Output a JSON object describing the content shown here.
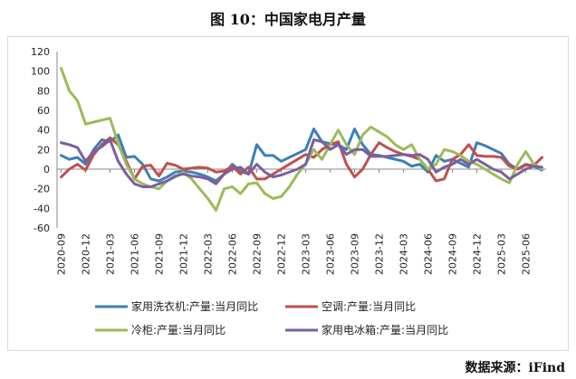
{
  "title": "图 10：中国家电月产量",
  "source": "数据来源：iFind",
  "chart_data": {
    "type": "line",
    "title": "",
    "xlabel": "",
    "ylabel": "",
    "ylim": [
      -60,
      120
    ],
    "yticks": [
      -60,
      -40,
      -20,
      0,
      20,
      40,
      60,
      80,
      100,
      120
    ],
    "grid": false,
    "legend_position": "bottom",
    "x": [
      "2020-09",
      "2020-10",
      "2020-11",
      "2020-12",
      "2021-01",
      "2021-02",
      "2021-03",
      "2021-04",
      "2021-05",
      "2021-06",
      "2021-07",
      "2021-08",
      "2021-09",
      "2021-10",
      "2021-11",
      "2021-12",
      "2022-01",
      "2022-02",
      "2022-03",
      "2022-04",
      "2022-05",
      "2022-06",
      "2022-07",
      "2022-08",
      "2022-09",
      "2022-10",
      "2022-11",
      "2022-12",
      "2023-01",
      "2023-02",
      "2023-03",
      "2023-04",
      "2023-05",
      "2023-06",
      "2023-07",
      "2023-08",
      "2023-09",
      "2023-10",
      "2023-11",
      "2023-12",
      "2024-01",
      "2024-02",
      "2024-03",
      "2024-04",
      "2024-05",
      "2024-06",
      "2024-07",
      "2024-08",
      "2024-09",
      "2024-10",
      "2024-11",
      "2024-12",
      "2025-01",
      "2025-02",
      "2025-03",
      "2025-04",
      "2025-05",
      "2025-06",
      "2025-07",
      "2025-08"
    ],
    "x_tick_labels": [
      "2020-09",
      "2020-12",
      "2021-03",
      "2021-06",
      "2021-09",
      "2021-12",
      "2022-03",
      "2022-06",
      "2022-09",
      "2022-12",
      "2023-03",
      "2023-06",
      "2023-09",
      "2023-12",
      "2024-03",
      "2024-06",
      "2024-09",
      "2024-12",
      "2025-03",
      "2025-06"
    ],
    "series": [
      {
        "name": "家用洗衣机:产量:当月同比",
        "color": "#3d7fb5",
        "values": [
          14,
          10,
          12,
          5,
          20,
          30,
          28,
          35,
          12,
          13,
          5,
          -10,
          -12,
          -8,
          -3,
          -2,
          -3,
          -5,
          -8,
          -12,
          -5,
          5,
          -2,
          -5,
          25,
          14,
          14,
          8,
          12,
          16,
          20,
          41,
          28,
          26,
          25,
          20,
          41,
          25,
          15,
          14,
          12,
          10,
          8,
          3,
          5,
          -3,
          14,
          8,
          10,
          6,
          2,
          27,
          24,
          20,
          16,
          5,
          0,
          5,
          3,
          -1
        ]
      },
      {
        "name": "空调:产量:当月同比",
        "color": "#c0504d",
        "values": [
          -8,
          0,
          5,
          -1,
          15,
          25,
          32,
          25,
          8,
          -10,
          3,
          4,
          -7,
          6,
          4,
          0,
          1,
          2,
          1,
          -3,
          -2,
          3,
          -5,
          2,
          -10,
          -10,
          -5,
          0,
          5,
          10,
          15,
          12,
          20,
          25,
          28,
          5,
          -8,
          0,
          15,
          27,
          22,
          18,
          15,
          13,
          10,
          0,
          -12,
          -10,
          10,
          15,
          25,
          14,
          13,
          13,
          12,
          3,
          0,
          4,
          4,
          12
        ]
      },
      {
        "name": "冷柜:产量:当月同比",
        "color": "#9bbb59",
        "values": [
          103,
          80,
          70,
          46,
          48,
          50,
          52,
          26,
          5,
          -10,
          -15,
          -18,
          -20,
          -12,
          -8,
          -3,
          -10,
          -20,
          -30,
          -42,
          -20,
          -18,
          -25,
          -15,
          -14,
          -25,
          -30,
          -28,
          -18,
          -5,
          5,
          20,
          10,
          25,
          40,
          25,
          15,
          35,
          43,
          38,
          33,
          25,
          20,
          25,
          10,
          0,
          5,
          20,
          18,
          14,
          8,
          5,
          0,
          -5,
          -10,
          -14,
          5,
          18,
          5,
          0
        ]
      },
      {
        "name": "家用电冰箱:产量:当月同比",
        "color": "#7b5fa0",
        "values": [
          27,
          25,
          22,
          8,
          18,
          23,
          30,
          8,
          -5,
          -15,
          -18,
          -18,
          -15,
          -12,
          -7,
          -5,
          -7,
          -8,
          -10,
          -15,
          -5,
          0,
          2,
          -5,
          5,
          -3,
          -8,
          -6,
          -3,
          0,
          5,
          30,
          28,
          20,
          25,
          15,
          20,
          20,
          13,
          13,
          13,
          14,
          15,
          14,
          15,
          10,
          -3,
          2,
          5,
          10,
          5,
          10,
          5,
          0,
          -3,
          -10,
          -5,
          0,
          3,
          2
        ]
      }
    ]
  }
}
